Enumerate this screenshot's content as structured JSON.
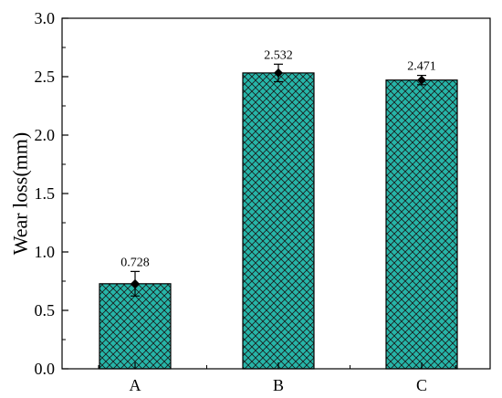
{
  "chart_data": {
    "type": "bar",
    "categories": [
      "A",
      "B",
      "C"
    ],
    "values": [
      0.728,
      2.532,
      2.471
    ],
    "value_labels": [
      "0.728",
      "2.532",
      "2.471"
    ],
    "error": [
      0.105,
      0.075,
      0.04
    ],
    "title": "",
    "xlabel": "",
    "ylabel": "Wear loss(mm)",
    "ylim": [
      0.0,
      3.0
    ],
    "yticks": [
      "0.0",
      "0.5",
      "1.0",
      "1.5",
      "2.0",
      "2.5",
      "3.0"
    ],
    "grid": false,
    "bar_color": "#26b5a8",
    "hatch": "crosshatch",
    "marker": "diamond"
  }
}
